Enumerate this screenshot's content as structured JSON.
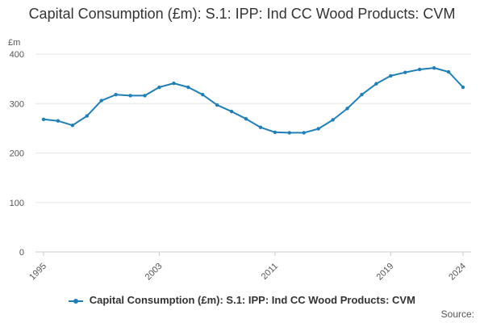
{
  "chart_data": {
    "type": "line",
    "title": "Capital Consumption (£m): S.1: IPP: Ind CC Wood Products: CVM",
    "ylabel": "£m",
    "xlabel": "",
    "ylim": [
      0,
      400
    ],
    "xlim": [
      1995,
      2024
    ],
    "yticks": [
      0,
      100,
      200,
      300,
      400
    ],
    "xticks": [
      "1995",
      "2003",
      "2011",
      "2019",
      "2024"
    ],
    "grid": true,
    "legend_position": "bottom",
    "color": "#1f7fb8",
    "series": [
      {
        "name": "Capital Consumption (£m): S.1: IPP: Ind CC Wood Products: CVM",
        "x": [
          1995,
          1996,
          1997,
          1998,
          1999,
          2000,
          2001,
          2002,
          2003,
          2004,
          2005,
          2006,
          2007,
          2008,
          2009,
          2010,
          2011,
          2012,
          2013,
          2014,
          2015,
          2016,
          2017,
          2018,
          2019,
          2020,
          2021,
          2022,
          2023,
          2024
        ],
        "values": [
          268,
          265,
          256,
          275,
          306,
          318,
          316,
          316,
          333,
          341,
          333,
          318,
          297,
          284,
          269,
          252,
          242,
          241,
          241,
          249,
          267,
          290,
          318,
          340,
          356,
          363,
          369,
          372,
          364,
          333
        ]
      }
    ],
    "source_label": "Source:"
  }
}
